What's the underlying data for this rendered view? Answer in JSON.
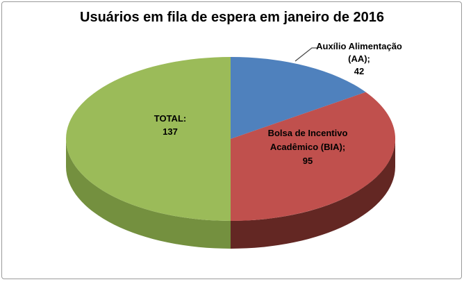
{
  "chart_data": {
    "type": "pie",
    "title": "Usuários em fila de espera em janeiro de 2016",
    "effect": "3d",
    "start_angle_deg": 0,
    "direction": "clockwise",
    "legend": "none",
    "background": "#ffffff",
    "frame_color": "#9a9a9a",
    "slices": [
      {
        "label": "Auxílio Alimentação (AA)",
        "value": 42,
        "color": "#4f81bd",
        "display_lines": [
          "Auxílio Alimentação",
          "(AA);",
          "42"
        ]
      },
      {
        "label": "Bolsa de Incentivo Acadêmico (BIA)",
        "value": 95,
        "color": "#c0504d",
        "side_color": "#632723",
        "display_lines": [
          "Bolsa de Incentivo",
          "Acadêmico (BIA);",
          "95"
        ]
      },
      {
        "label": "TOTAL",
        "value": 137,
        "color": "#9bbb59",
        "side_color": "#74903f",
        "display_lines": [
          "TOTAL:",
          "137"
        ]
      }
    ],
    "leader_line_color": "#4a4a4a"
  }
}
